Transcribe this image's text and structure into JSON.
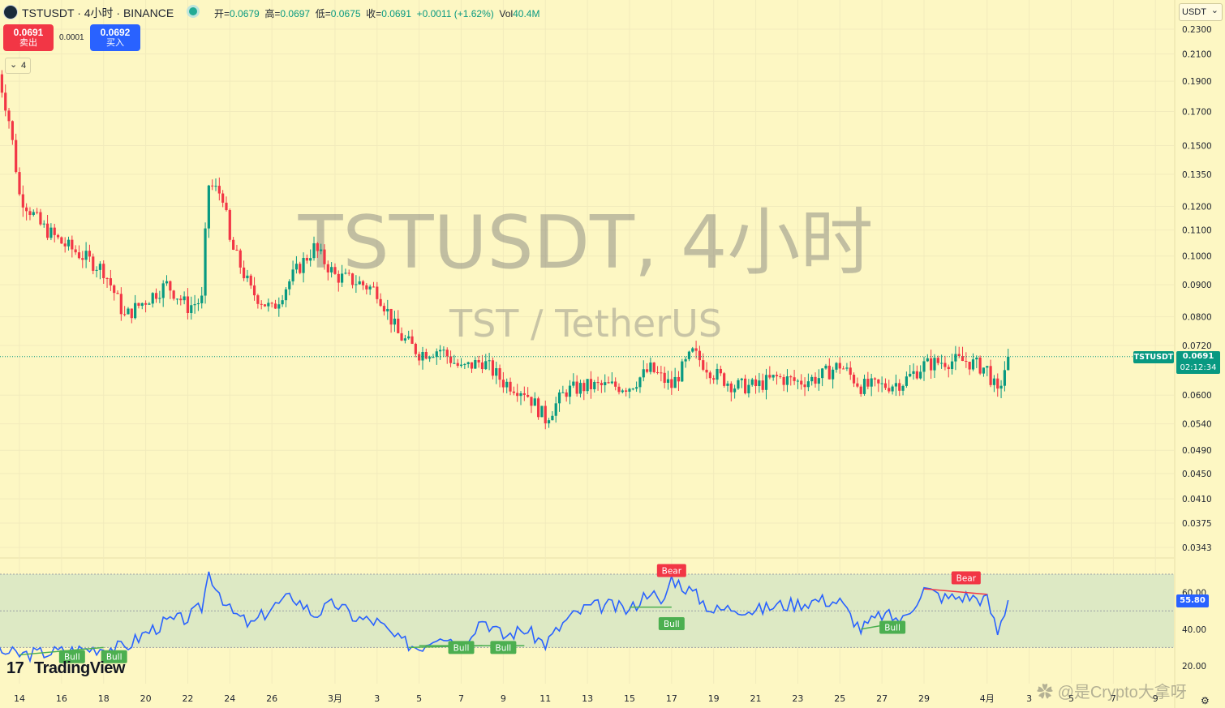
{
  "header": {
    "symbol_line": "TSTUSDT · 4小时 · BINANCE",
    "open_label": "开=",
    "open": "0.0679",
    "high_label": "高=",
    "high": "0.0697",
    "low_label": "低=",
    "low": "0.0675",
    "close_label": "收=",
    "close": "0.0691",
    "change": "+0.0011 (+1.62%)",
    "vol_label": "Vol",
    "vol": "40.4M"
  },
  "trade": {
    "sell_price": "0.0691",
    "sell_label": "卖出",
    "spread": "0.0001",
    "buy_price": "0.0692",
    "buy_label": "买入",
    "indicator_count": "4"
  },
  "currency_selector": "USDT",
  "watermark": {
    "title": "TSTUSDT, 4小时",
    "subtitle": "TST / TetherUS"
  },
  "price_tag": {
    "symbol": "TSTUSDT",
    "price": "0.0691",
    "countdown": "02:12:34"
  },
  "rsi_tag": "55.80",
  "rsi_labels": [
    {
      "text": "Bear",
      "type": "bear"
    },
    {
      "text": "Bull",
      "type": "bull"
    },
    {
      "text": "Bull",
      "type": "bull"
    },
    {
      "text": "Bull",
      "type": "bull"
    },
    {
      "text": "Bull",
      "type": "bull"
    },
    {
      "text": "Bear",
      "type": "bear"
    },
    {
      "text": "Bull",
      "type": "bull"
    },
    {
      "text": "Bull",
      "type": "bull"
    }
  ],
  "logo_text": "TradingView",
  "credit": "@是Crypto大拿呀",
  "colors": {
    "up": "#089981",
    "down": "#f23645",
    "rsi_line": "#2962ff",
    "rsi_band": "#dde9c4",
    "background": "#fdf7c3"
  },
  "chart_data": [
    {
      "type": "candlestick",
      "title": "TSTUSDT, 4小时",
      "y_scale": "log",
      "y_ticks": [
        "0.2300",
        "0.2100",
        "0.1900",
        "0.1700",
        "0.1500",
        "0.1350",
        "0.1200",
        "0.1100",
        "0.1000",
        "0.0900",
        "0.0800",
        "0.0720",
        "0.0600",
        "0.0540",
        "0.0490",
        "0.0450",
        "0.0410",
        "0.0375",
        "0.0343"
      ],
      "x_ticks": [
        "14",
        "16",
        "18",
        "20",
        "22",
        "24",
        "26",
        "3月",
        "3",
        "5",
        "7",
        "9",
        "11",
        "13",
        "15",
        "17",
        "19",
        "21",
        "23",
        "25",
        "27",
        "29",
        "4月",
        "3",
        "5",
        "7",
        "9"
      ],
      "close_anchors": [
        {
          "date": "02-13",
          "close": 0.195
        },
        {
          "date": "02-13 12:00",
          "close": 0.165
        },
        {
          "date": "02-14",
          "close": 0.125
        },
        {
          "date": "02-15",
          "close": 0.112
        },
        {
          "date": "02-16",
          "close": 0.105
        },
        {
          "date": "02-17",
          "close": 0.1
        },
        {
          "date": "02-18",
          "close": 0.095
        },
        {
          "date": "02-19",
          "close": 0.08
        },
        {
          "date": "02-20",
          "close": 0.085
        },
        {
          "date": "02-21",
          "close": 0.09
        },
        {
          "date": "02-22",
          "close": 0.083
        },
        {
          "date": "02-22 16:00",
          "close": 0.085
        },
        {
          "date": "02-23",
          "close": 0.13
        },
        {
          "date": "02-23 16:00",
          "close": 0.125
        },
        {
          "date": "02-24",
          "close": 0.105
        },
        {
          "date": "02-25",
          "close": 0.088
        },
        {
          "date": "02-26",
          "close": 0.082
        },
        {
          "date": "02-27",
          "close": 0.093
        },
        {
          "date": "02-28",
          "close": 0.103
        },
        {
          "date": "03-01",
          "close": 0.093
        },
        {
          "date": "03-02",
          "close": 0.091
        },
        {
          "date": "03-03",
          "close": 0.088
        },
        {
          "date": "03-04",
          "close": 0.075
        },
        {
          "date": "03-05",
          "close": 0.07
        },
        {
          "date": "03-06",
          "close": 0.071
        },
        {
          "date": "03-07",
          "close": 0.066
        },
        {
          "date": "03-08",
          "close": 0.068
        },
        {
          "date": "03-09",
          "close": 0.063
        },
        {
          "date": "03-10",
          "close": 0.061
        },
        {
          "date": "03-11",
          "close": 0.055
        },
        {
          "date": "03-12",
          "close": 0.061
        },
        {
          "date": "03-13",
          "close": 0.062
        },
        {
          "date": "03-14",
          "close": 0.062
        },
        {
          "date": "03-15",
          "close": 0.062
        },
        {
          "date": "03-16",
          "close": 0.066
        },
        {
          "date": "03-17",
          "close": 0.062
        },
        {
          "date": "03-18",
          "close": 0.07
        },
        {
          "date": "03-19",
          "close": 0.065
        },
        {
          "date": "03-20",
          "close": 0.062
        },
        {
          "date": "03-21",
          "close": 0.062
        },
        {
          "date": "03-22",
          "close": 0.064
        },
        {
          "date": "03-23",
          "close": 0.063
        },
        {
          "date": "03-24",
          "close": 0.064
        },
        {
          "date": "03-25",
          "close": 0.067
        },
        {
          "date": "03-26",
          "close": 0.062
        },
        {
          "date": "03-27",
          "close": 0.062
        },
        {
          "date": "03-28",
          "close": 0.063
        },
        {
          "date": "03-29",
          "close": 0.067
        },
        {
          "date": "03-30",
          "close": 0.068
        },
        {
          "date": "03-31",
          "close": 0.068
        },
        {
          "date": "04-01",
          "close": 0.066
        },
        {
          "date": "04-01 12:00",
          "close": 0.06
        },
        {
          "date": "04-02",
          "close": 0.0691
        }
      ],
      "last_price": 0.0691
    },
    {
      "type": "line",
      "title": "RSI",
      "y_ticks": [
        "60.00",
        "40.00",
        "20.00"
      ],
      "band": [
        30,
        70
      ],
      "midline": 50,
      "last_value": 55.8,
      "rsi_anchors": [
        {
          "date": "02-12",
          "value": 30
        },
        {
          "date": "02-14",
          "value": 26
        },
        {
          "date": "02-16",
          "value": 28
        },
        {
          "date": "02-18",
          "value": 30
        },
        {
          "date": "02-19",
          "value": 30
        },
        {
          "date": "02-20",
          "value": 38
        },
        {
          "date": "02-21",
          "value": 44
        },
        {
          "date": "02-22",
          "value": 46
        },
        {
          "date": "02-22 16:00",
          "value": 52
        },
        {
          "date": "02-23",
          "value": 71
        },
        {
          "date": "02-24",
          "value": 50
        },
        {
          "date": "02-25",
          "value": 42
        },
        {
          "date": "02-26",
          "value": 52
        },
        {
          "date": "02-27",
          "value": 58
        },
        {
          "date": "02-28",
          "value": 48
        },
        {
          "date": "03-01",
          "value": 54
        },
        {
          "date": "03-02",
          "value": 46
        },
        {
          "date": "03-03",
          "value": 44
        },
        {
          "date": "03-04",
          "value": 34
        },
        {
          "date": "03-05",
          "value": 30
        },
        {
          "date": "03-06",
          "value": 38
        },
        {
          "date": "03-07",
          "value": 32
        },
        {
          "date": "03-08",
          "value": 46
        },
        {
          "date": "03-09",
          "value": 36
        },
        {
          "date": "03-10",
          "value": 40
        },
        {
          "date": "03-11",
          "value": 32
        },
        {
          "date": "03-12",
          "value": 45
        },
        {
          "date": "03-13",
          "value": 52
        },
        {
          "date": "03-14",
          "value": 53
        },
        {
          "date": "03-15",
          "value": 50
        },
        {
          "date": "03-16",
          "value": 62
        },
        {
          "date": "03-16 12:00",
          "value": 52
        },
        {
          "date": "03-17",
          "value": 68
        },
        {
          "date": "03-18",
          "value": 60
        },
        {
          "date": "03-19",
          "value": 50
        },
        {
          "date": "03-20",
          "value": 52
        },
        {
          "date": "03-21",
          "value": 50
        },
        {
          "date": "03-22",
          "value": 53
        },
        {
          "date": "03-23",
          "value": 54
        },
        {
          "date": "03-24",
          "value": 56
        },
        {
          "date": "03-25",
          "value": 55
        },
        {
          "date": "03-26",
          "value": 40
        },
        {
          "date": "03-27",
          "value": 48
        },
        {
          "date": "03-28",
          "value": 45
        },
        {
          "date": "03-29",
          "value": 62
        },
        {
          "date": "03-30",
          "value": 57
        },
        {
          "date": "03-31",
          "value": 58
        },
        {
          "date": "04-01",
          "value": 56
        },
        {
          "date": "04-01 12:00",
          "value": 38
        },
        {
          "date": "04-02",
          "value": 55.8
        }
      ]
    }
  ]
}
